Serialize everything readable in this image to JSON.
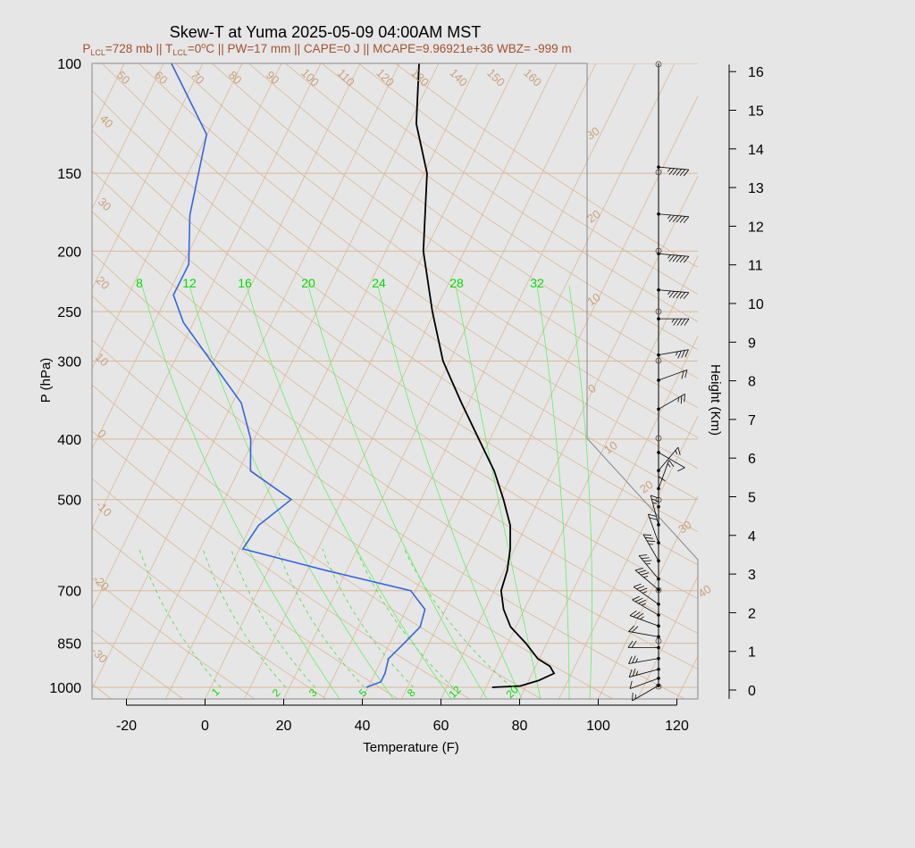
{
  "chart_data": {
    "type": "line",
    "title": "Skew-T at Yuma 2025-05-09 04:00AM MST",
    "subtitle_parts": {
      "plcl": "728 mb",
      "tlcl": "0",
      "pw": "17 mm",
      "cape": "0 J",
      "mcape": "9.96921e+36",
      "wbz": "-999 m"
    },
    "xlabel": "Temperature (F)",
    "ylabel": "P (hPa)",
    "y2label": "Height (Km)",
    "xlim": [
      -20,
      120
    ],
    "ylim": [
      1000,
      100
    ],
    "x_ticks": [
      -20,
      0,
      20,
      40,
      60,
      80,
      100,
      120
    ],
    "p_ticks": [
      100,
      150,
      200,
      250,
      300,
      400,
      500,
      700,
      850,
      1000
    ],
    "height_ticks": [
      0,
      1,
      2,
      3,
      4,
      5,
      6,
      7,
      8,
      9,
      10,
      11,
      12,
      13,
      14,
      15,
      16
    ],
    "isotherm_labels": [
      "50",
      "60",
      "70",
      "80",
      "90",
      "100",
      "110",
      "120",
      "130",
      "140",
      "150",
      "160",
      "40",
      "30",
      "20",
      "10",
      "0",
      "-10",
      "-20",
      "-30",
      "30",
      "20",
      "10",
      "0",
      "10",
      "20",
      "30",
      "40"
    ],
    "theta_e_labels": [
      "8",
      "12",
      "16",
      "20",
      "24",
      "28",
      "32"
    ],
    "mixing_ratio_labels": [
      "1",
      "2",
      "3",
      "5",
      "8",
      "12",
      "20"
    ],
    "series": [
      {
        "name": "Temperature",
        "color": "#000000",
        "points": [
          {
            "p": 1000,
            "t": 73
          },
          {
            "p": 995,
            "t": 80
          },
          {
            "p": 975,
            "t": 84
          },
          {
            "p": 950,
            "t": 87
          },
          {
            "p": 925,
            "t": 85
          },
          {
            "p": 900,
            "t": 81
          },
          {
            "p": 850,
            "t": 76
          },
          {
            "p": 800,
            "t": 70
          },
          {
            "p": 750,
            "t": 66
          },
          {
            "p": 700,
            "t": 63
          },
          {
            "p": 650,
            "t": 62
          },
          {
            "p": 600,
            "t": 60
          },
          {
            "p": 550,
            "t": 57
          },
          {
            "p": 500,
            "t": 52
          },
          {
            "p": 450,
            "t": 46
          },
          {
            "p": 400,
            "t": 38
          },
          {
            "p": 350,
            "t": 29
          },
          {
            "p": 300,
            "t": 19
          },
          {
            "p": 250,
            "t": 10
          },
          {
            "p": 200,
            "t": 0
          },
          {
            "p": 150,
            "t": -9
          },
          {
            "p": 125,
            "t": -18
          },
          {
            "p": 100,
            "t": -25
          }
        ]
      },
      {
        "name": "Dewpoint",
        "color": "#3366dd",
        "points": [
          {
            "p": 1000,
            "t": 41
          },
          {
            "p": 980,
            "t": 44
          },
          {
            "p": 950,
            "t": 44
          },
          {
            "p": 900,
            "t": 43
          },
          {
            "p": 850,
            "t": 45
          },
          {
            "p": 800,
            "t": 47
          },
          {
            "p": 750,
            "t": 46
          },
          {
            "p": 700,
            "t": 40
          },
          {
            "p": 650,
            "t": 16
          },
          {
            "p": 600,
            "t": -8
          },
          {
            "p": 550,
            "t": -7
          },
          {
            "p": 500,
            "t": -2
          },
          {
            "p": 450,
            "t": -16
          },
          {
            "p": 400,
            "t": -20
          },
          {
            "p": 350,
            "t": -27
          },
          {
            "p": 300,
            "t": -40
          },
          {
            "p": 260,
            "t": -52
          },
          {
            "p": 235,
            "t": -58
          },
          {
            "p": 210,
            "t": -58
          },
          {
            "p": 175,
            "t": -64
          },
          {
            "p": 130,
            "t": -70
          },
          {
            "p": 100,
            "t": -88
          }
        ]
      }
    ],
    "wind_barbs": [
      {
        "km": 0.05,
        "dir": 60,
        "spd": 5
      },
      {
        "km": 0.25,
        "dir": 70,
        "spd": 10
      },
      {
        "km": 0.5,
        "dir": 75,
        "spd": 15
      },
      {
        "km": 0.8,
        "dir": 80,
        "spd": 15
      },
      {
        "km": 1.1,
        "dir": 90,
        "spd": 20
      },
      {
        "km": 1.4,
        "dir": 100,
        "spd": 20
      },
      {
        "km": 1.7,
        "dir": 110,
        "spd": 25
      },
      {
        "km": 2.0,
        "dir": 120,
        "spd": 25
      },
      {
        "km": 2.3,
        "dir": 125,
        "spd": 25
      },
      {
        "km": 2.7,
        "dir": 130,
        "spd": 25
      },
      {
        "km": 3.0,
        "dir": 140,
        "spd": 25
      },
      {
        "km": 3.5,
        "dir": 150,
        "spd": 25
      },
      {
        "km": 4.0,
        "dir": 160,
        "spd": 20
      },
      {
        "km": 4.5,
        "dir": 165,
        "spd": 15
      },
      {
        "km": 5.0,
        "dir": 180,
        "spd": 10
      },
      {
        "km": 5.5,
        "dir": 200,
        "spd": 5
      },
      {
        "km": 6.0,
        "dir": 220,
        "spd": 5
      },
      {
        "km": 6.5,
        "dir": 300,
        "spd": 10
      },
      {
        "km": 7.7,
        "dir": 240,
        "spd": 15
      },
      {
        "km": 8.5,
        "dir": 250,
        "spd": 20
      },
      {
        "km": 9.2,
        "dir": 260,
        "spd": 25
      },
      {
        "km": 10.2,
        "dir": 270,
        "spd": 35
      },
      {
        "km": 11.0,
        "dir": 275,
        "spd": 45
      },
      {
        "km": 12.0,
        "dir": 275,
        "spd": 45
      },
      {
        "km": 13.1,
        "dir": 275,
        "spd": 45
      },
      {
        "km": 14.4,
        "dir": 275,
        "spd": 45
      }
    ]
  }
}
